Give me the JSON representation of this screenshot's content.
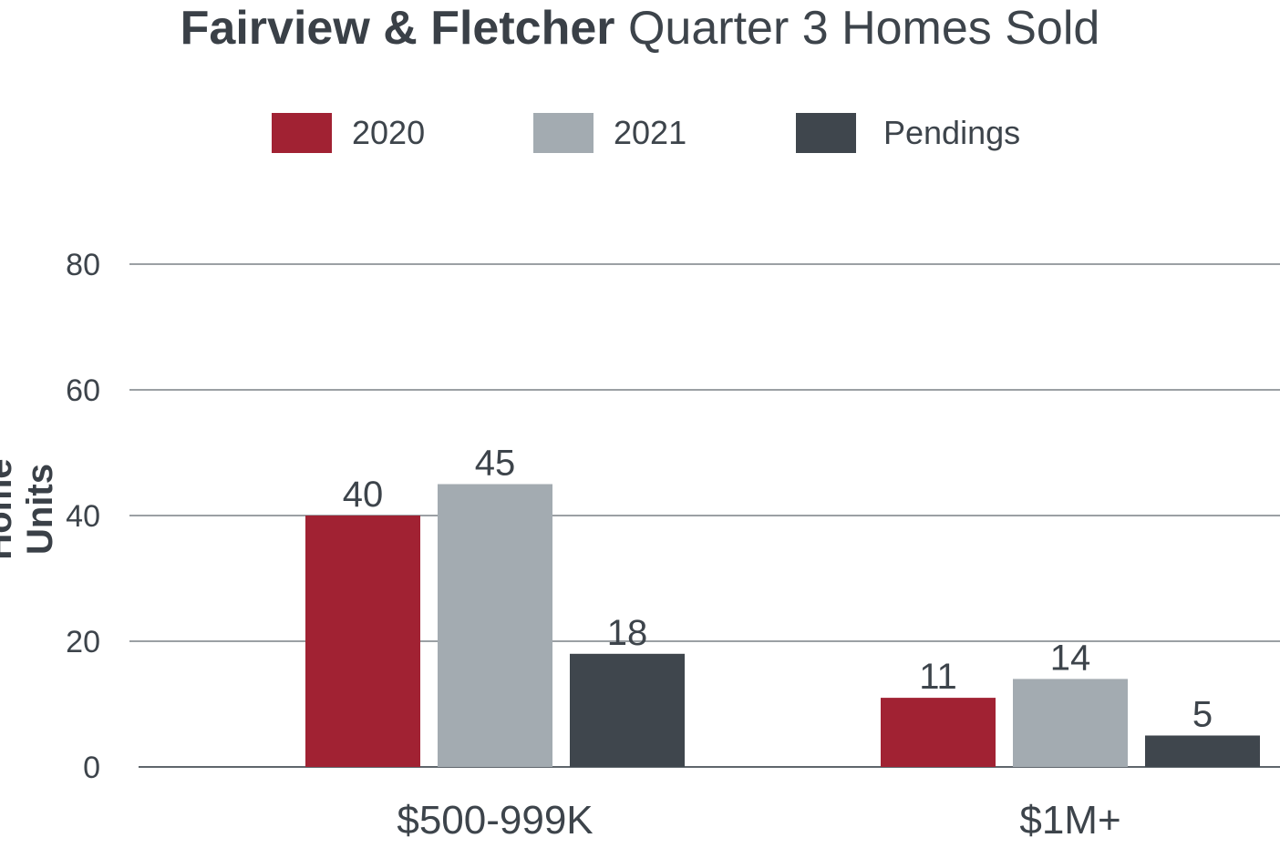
{
  "title": {
    "bold": "Fairview & Fletcher",
    "rest": "Quarter 3 Homes Sold"
  },
  "chart_data": {
    "type": "bar",
    "title": "Fairview & Fletcher Quarter 3 Homes Sold",
    "xlabel": "",
    "ylabel": "Home Units",
    "ylim": [
      0,
      80
    ],
    "yticks": [
      0,
      20,
      40,
      60,
      80
    ],
    "grid": true,
    "legend_position": "top-center",
    "categories": [
      "$500-999K",
      "$1M+"
    ],
    "series": [
      {
        "name": "2020",
        "values": [
          40,
          11
        ],
        "color": "#a12233"
      },
      {
        "name": "2021",
        "values": [
          45,
          14
        ],
        "color": "#a3abb1"
      },
      {
        "name": "Pendings",
        "values": [
          18,
          5
        ],
        "color": "#3f464d"
      }
    ]
  }
}
